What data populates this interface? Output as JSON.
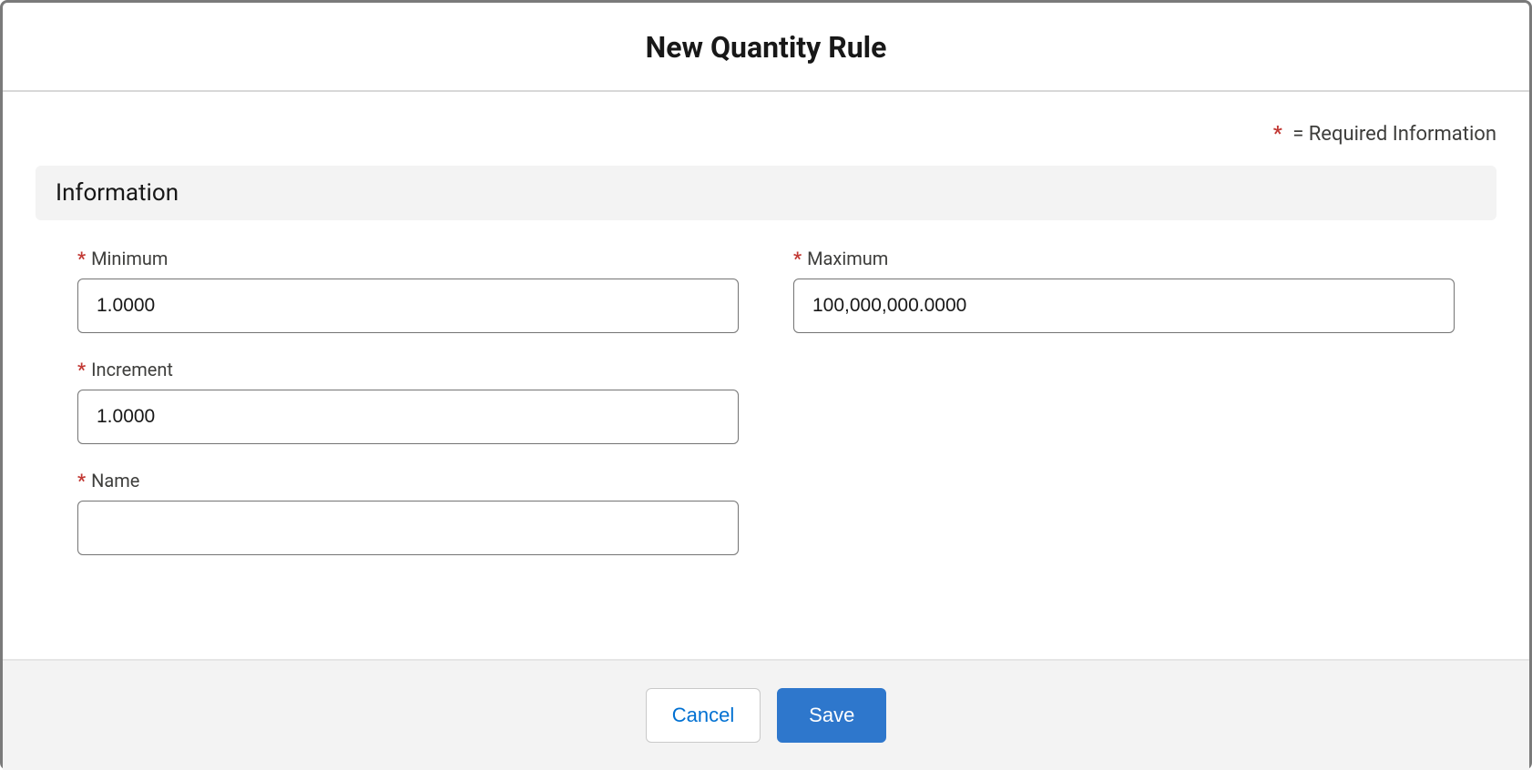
{
  "header": {
    "title": "New Quantity Rule"
  },
  "legend": {
    "asterisk": "*",
    "text": "= Required Information"
  },
  "section": {
    "title": "Information"
  },
  "fields": {
    "minimum": {
      "label": "Minimum",
      "value": "1.0000",
      "required": true
    },
    "maximum": {
      "label": "Maximum",
      "value": "100,000,000.0000",
      "required": true
    },
    "increment": {
      "label": "Increment",
      "value": "1.0000",
      "required": true
    },
    "name": {
      "label": "Name",
      "value": "",
      "required": true
    }
  },
  "footer": {
    "cancel_label": "Cancel",
    "save_label": "Save"
  },
  "colors": {
    "required_asterisk": "#c23934",
    "primary_button_bg": "#2e77cc",
    "primary_button_text": "#ffffff",
    "secondary_button_text": "#0070d2",
    "section_bg": "#f3f3f3",
    "footer_bg": "#f3f3f3",
    "border": "#747474",
    "text": "#181818",
    "label_text": "#3e3e3c"
  }
}
